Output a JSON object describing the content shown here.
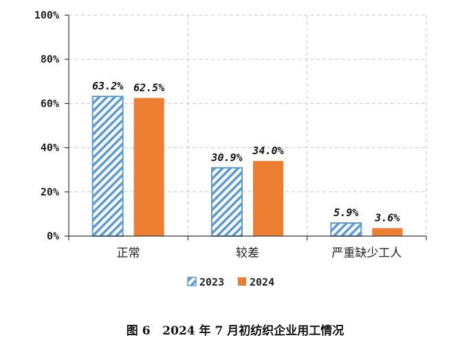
{
  "chart_data": {
    "type": "bar",
    "categories": [
      "正常",
      "较差",
      "严重缺少工人"
    ],
    "series": [
      {
        "name": "2023",
        "values": [
          63.2,
          30.9,
          5.9
        ],
        "labels": [
          "63.2%",
          "30.9%",
          "5.9%"
        ],
        "color": "#5b9bd5",
        "pattern": "diagonal-hatch"
      },
      {
        "name": "2024",
        "values": [
          62.5,
          34.0,
          3.6
        ],
        "labels": [
          "62.5%",
          "34.0%",
          "3.6%"
        ],
        "color": "#ed7d31",
        "pattern": "solid"
      }
    ],
    "yticks": [
      "0%",
      "20%",
      "40%",
      "60%",
      "80%",
      "100%"
    ],
    "ylim": [
      0,
      100
    ],
    "grid": true,
    "legend_position": "bottom"
  },
  "caption": "图 6   2024 年 7 月初纺织企业用工情况"
}
